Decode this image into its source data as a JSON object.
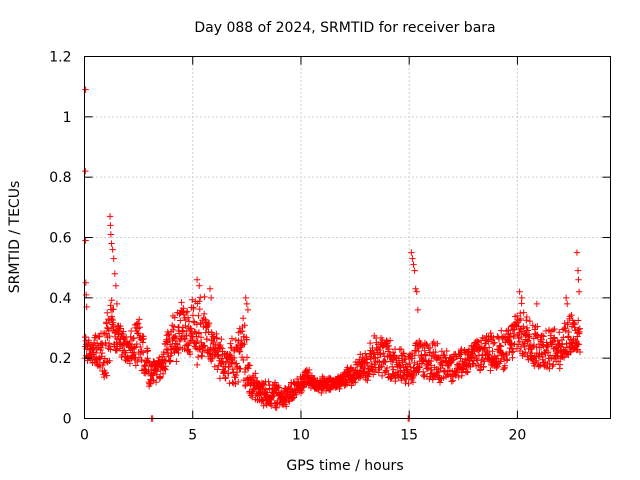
{
  "chart_data": {
    "type": "scatter",
    "title": "Day 088 of 2024, SRMTID for receiver bara",
    "xlabel": "GPS time / hours",
    "ylabel": "SRMTID / TECUs",
    "xlim": [
      0,
      24.3
    ],
    "ylim": [
      0,
      1.2
    ],
    "xticks": [
      0,
      5,
      10,
      15,
      20
    ],
    "yticks": [
      0,
      0.2,
      0.4,
      0.6,
      0.8,
      1,
      1.2
    ],
    "xtick_labels": [
      "0",
      "5",
      "10",
      "15",
      "20"
    ],
    "ytick_labels": [
      "0",
      "0.2",
      "0.4",
      "0.6",
      "0.8",
      "1",
      "1.2"
    ],
    "grid": true,
    "marker": "plus",
    "series": [
      {
        "name": "SRMTID",
        "color": "#ff0000",
        "envelope_hours": [
          0,
          0.1,
          0.4,
          0.8,
          1.0,
          1.2,
          1.5,
          2.0,
          2.5,
          3.0,
          3.5,
          4.0,
          4.5,
          5.0,
          5.5,
          6.0,
          6.5,
          7.0,
          7.4,
          7.6,
          8.0,
          8.5,
          9.0,
          9.5,
          10.0,
          10.3,
          10.6,
          11.0,
          11.5,
          12.0,
          12.5,
          13.0,
          13.5,
          14.0,
          14.5,
          15.0,
          15.5,
          16.0,
          16.5,
          17.0,
          17.5,
          18.0,
          18.5,
          19.0,
          19.5,
          19.8,
          20.0,
          20.5,
          21.0,
          21.5,
          22.0,
          22.5,
          22.9
        ],
        "envelope_min": [
          0.16,
          0.18,
          0.17,
          0.12,
          0.1,
          0.18,
          0.2,
          0.17,
          0.16,
          0.08,
          0.12,
          0.16,
          0.2,
          0.17,
          0.18,
          0.14,
          0.12,
          0.1,
          0.08,
          0.05,
          0.04,
          0.03,
          0.03,
          0.04,
          0.08,
          0.1,
          0.09,
          0.08,
          0.09,
          0.1,
          0.11,
          0.12,
          0.13,
          0.11,
          0.12,
          0.1,
          0.12,
          0.11,
          0.1,
          0.12,
          0.14,
          0.16,
          0.15,
          0.14,
          0.16,
          0.18,
          0.2,
          0.16,
          0.14,
          0.15,
          0.16,
          0.18,
          0.2
        ],
        "envelope_max": [
          0.32,
          0.26,
          0.28,
          0.3,
          0.34,
          0.44,
          0.34,
          0.28,
          0.36,
          0.22,
          0.22,
          0.34,
          0.4,
          0.4,
          0.42,
          0.3,
          0.28,
          0.28,
          0.38,
          0.2,
          0.14,
          0.13,
          0.12,
          0.12,
          0.15,
          0.18,
          0.14,
          0.14,
          0.14,
          0.16,
          0.2,
          0.24,
          0.3,
          0.28,
          0.24,
          0.24,
          0.28,
          0.28,
          0.24,
          0.22,
          0.24,
          0.26,
          0.28,
          0.3,
          0.3,
          0.34,
          0.4,
          0.36,
          0.34,
          0.3,
          0.32,
          0.38,
          0.34
        ],
        "spike_points": [
          [
            0.05,
            1.09
          ],
          [
            0.04,
            0.82
          ],
          [
            0.05,
            0.59
          ],
          [
            0.06,
            0.45
          ],
          [
            0.08,
            0.41
          ],
          [
            0.1,
            0.37
          ],
          [
            1.0,
            0.28
          ],
          [
            1.05,
            0.35
          ],
          [
            1.18,
            0.67
          ],
          [
            1.2,
            0.64
          ],
          [
            1.22,
            0.61
          ],
          [
            1.25,
            0.58
          ],
          [
            1.3,
            0.56
          ],
          [
            1.35,
            0.53
          ],
          [
            1.4,
            0.48
          ],
          [
            1.45,
            0.44
          ],
          [
            1.5,
            0.38
          ],
          [
            3.1,
            0.0
          ],
          [
            3.15,
            0.0
          ],
          [
            5.2,
            0.46
          ],
          [
            5.3,
            0.44
          ],
          [
            5.8,
            0.43
          ],
          [
            5.85,
            0.4
          ],
          [
            7.45,
            0.4
          ],
          [
            7.5,
            0.38
          ],
          [
            7.55,
            0.36
          ],
          [
            14.95,
            0.0
          ],
          [
            15.0,
            0.0
          ],
          [
            15.1,
            0.55
          ],
          [
            15.15,
            0.53
          ],
          [
            15.2,
            0.51
          ],
          [
            15.25,
            0.49
          ],
          [
            15.3,
            0.43
          ],
          [
            15.35,
            0.42
          ],
          [
            15.4,
            0.36
          ],
          [
            20.1,
            0.42
          ],
          [
            20.2,
            0.4
          ],
          [
            20.9,
            0.38
          ],
          [
            22.25,
            0.4
          ],
          [
            22.3,
            0.38
          ],
          [
            22.75,
            0.55
          ],
          [
            22.8,
            0.49
          ],
          [
            22.82,
            0.46
          ],
          [
            22.85,
            0.42
          ]
        ]
      }
    ]
  }
}
